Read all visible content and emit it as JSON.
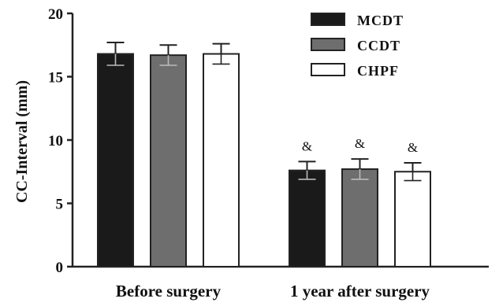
{
  "chart_data": {
    "type": "bar",
    "categories": [
      "Before surgery",
      "1 year after surgery"
    ],
    "series": [
      {
        "name": "MCDT",
        "values": [
          16.8,
          7.6
        ],
        "errors": [
          0.9,
          0.7
        ],
        "color": "#1a1a1a"
      },
      {
        "name": "CCDT",
        "values": [
          16.7,
          7.7
        ],
        "errors": [
          0.8,
          0.8
        ],
        "color": "#6e6e6e"
      },
      {
        "name": "CHPF",
        "values": [
          16.8,
          7.5
        ],
        "errors": [
          0.8,
          0.7
        ],
        "color": "#ffffff"
      }
    ],
    "annotations": [
      {
        "category": "1 year after surgery",
        "series": "MCDT",
        "text": "&"
      },
      {
        "category": "1 year after surgery",
        "series": "CCDT",
        "text": "&"
      },
      {
        "category": "1 year after surgery",
        "series": "CHPF",
        "text": "&"
      }
    ],
    "title": "",
    "xlabel": "",
    "ylabel": "CC-Interval (mm)",
    "ylim": [
      0,
      20
    ],
    "yticks": [
      "0",
      "5",
      "10",
      "15",
      "20"
    ],
    "grid": false,
    "legend_position": "top-right",
    "error_bars": true
  }
}
